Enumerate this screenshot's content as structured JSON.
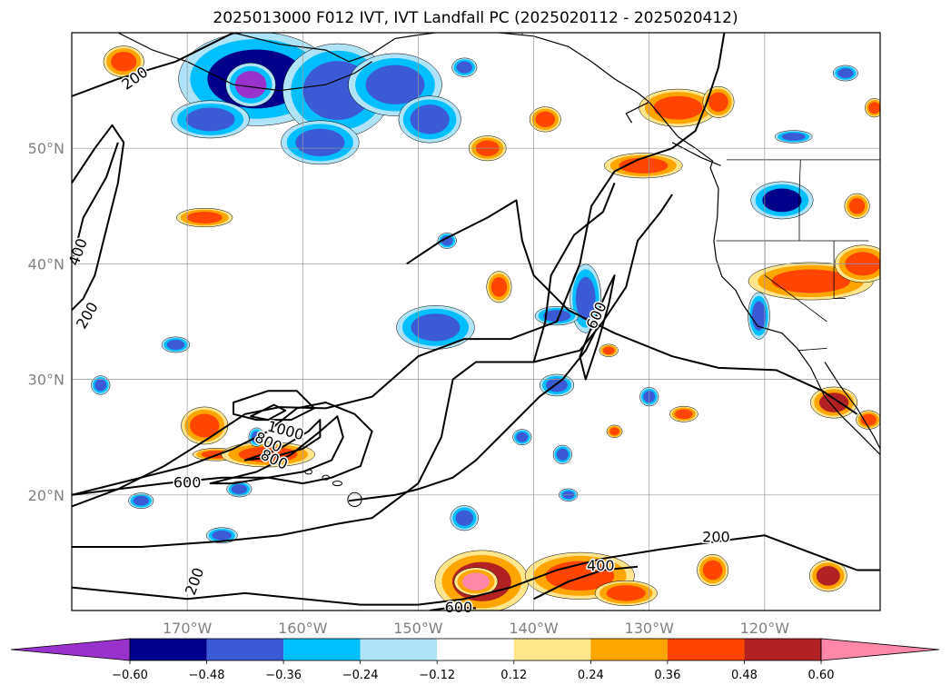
{
  "chart_data": {
    "type": "contour",
    "title": "2025013000 F012 IVT, IVT Landfall PC (2025020112 - 2025020412)",
    "lon_ticks": [
      -170,
      -160,
      -150,
      -140,
      -130,
      -120
    ],
    "lon_labels": [
      "170°W",
      "160°W",
      "150°W",
      "140°W",
      "130°W",
      "120°W"
    ],
    "lat_ticks": [
      20,
      30,
      40,
      50
    ],
    "lat_labels": [
      "20°N",
      "30°N",
      "40°N",
      "50°N"
    ],
    "xlim": [
      -180,
      -110
    ],
    "ylim": [
      10,
      60
    ],
    "grid": true,
    "ivt_contour_levels": [
      200,
      400,
      600,
      800,
      1000
    ],
    "ivt_contour_labels": [
      {
        "text": "200",
        "lon": -174.5,
        "lat": 56.0,
        "rot": -35
      },
      {
        "text": "400",
        "lon": -179.4,
        "lat": 41.0,
        "rot": -70
      },
      {
        "text": "200",
        "lon": -178.6,
        "lat": 35.5,
        "rot": -60
      },
      {
        "text": "600",
        "lon": -170.0,
        "lat": 21.0,
        "rot": 0
      },
      {
        "text": "800",
        "lon": -163.0,
        "lat": 24.5,
        "rot": 25
      },
      {
        "text": "1000",
        "lon": -161.5,
        "lat": 25.5,
        "rot": 15
      },
      {
        "text": "800",
        "lon": -162.5,
        "lat": 23.0,
        "rot": 25
      },
      {
        "text": "600",
        "lon": -134.5,
        "lat": 35.5,
        "rot": -65
      },
      {
        "text": "200",
        "lon": -124.2,
        "lat": 16.3,
        "rot": 0
      },
      {
        "text": "400",
        "lon": -134.2,
        "lat": 13.8,
        "rot": 0
      },
      {
        "text": "600",
        "lon": -146.5,
        "lat": 10.2,
        "rot": 0
      },
      {
        "text": "200",
        "lon": -169.3,
        "lat": 12.5,
        "rot": -70
      }
    ],
    "colorbar": {
      "ticks": [
        "−0.60",
        "−0.48",
        "−0.36",
        "−0.24",
        "−0.12",
        "0.12",
        "0.24",
        "0.36",
        "0.48",
        "0.60"
      ],
      "bounds": [
        -0.6,
        -0.48,
        -0.36,
        -0.24,
        -0.12,
        0.12,
        0.24,
        0.36,
        0.48,
        0.6
      ],
      "colors": [
        "#9932cc",
        "#00008b",
        "#3b5bd6",
        "#00bfff",
        "#aee3f8",
        "#ffffff",
        "#ffe68c",
        "#ffa500",
        "#ff4500",
        "#b22222",
        "#ff88aa"
      ],
      "extend": "both"
    },
    "shaded_regions": [
      {
        "lon": -164.0,
        "lat": 56.0,
        "rx": 5.0,
        "ry": 3.0,
        "cls": -0.55
      },
      {
        "lon": -164.5,
        "lat": 55.5,
        "rx": 1.6,
        "ry": 1.4,
        "cls": -0.65
      },
      {
        "lon": -157.0,
        "lat": 55.0,
        "rx": 3.5,
        "ry": 3.0,
        "cls": -0.4
      },
      {
        "lon": -152.0,
        "lat": 55.5,
        "rx": 3.0,
        "ry": 2.0,
        "cls": -0.4
      },
      {
        "lon": -149.0,
        "lat": 52.5,
        "rx": 2.0,
        "ry": 1.5,
        "cls": -0.4
      },
      {
        "lon": -168.0,
        "lat": 52.5,
        "rx": 2.5,
        "ry": 1.2,
        "cls": -0.4
      },
      {
        "lon": -158.5,
        "lat": 50.5,
        "rx": 2.5,
        "ry": 1.4,
        "cls": -0.4
      },
      {
        "lon": -175.5,
        "lat": 57.5,
        "rx": 1.3,
        "ry": 1.0,
        "cls": 0.4
      },
      {
        "lon": -168.5,
        "lat": 44.0,
        "rx": 1.8,
        "ry": 0.6,
        "cls": 0.4
      },
      {
        "lon": -144.0,
        "lat": 50.0,
        "rx": 1.2,
        "ry": 0.8,
        "cls": 0.4
      },
      {
        "lon": -127.5,
        "lat": 53.5,
        "rx": 2.5,
        "ry": 1.2,
        "cls": 0.4
      },
      {
        "lon": -124.0,
        "lat": 54.0,
        "rx": 1.0,
        "ry": 1.0,
        "cls": 0.4
      },
      {
        "lon": -130.5,
        "lat": 48.5,
        "rx": 2.5,
        "ry": 0.8,
        "cls": 0.4
      },
      {
        "lon": -143.0,
        "lat": 38.0,
        "rx": 0.8,
        "ry": 1.0,
        "cls": 0.4
      },
      {
        "lon": -116.0,
        "lat": 38.5,
        "rx": 4.0,
        "ry": 1.2,
        "cls": 0.4
      },
      {
        "lon": -111.5,
        "lat": 40.0,
        "rx": 1.8,
        "ry": 1.2,
        "cls": 0.4
      },
      {
        "lon": -118.5,
        "lat": 45.5,
        "rx": 2.0,
        "ry": 1.2,
        "cls": -0.5
      },
      {
        "lon": -120.5,
        "lat": 35.5,
        "rx": 0.7,
        "ry": 1.5,
        "cls": -0.4
      },
      {
        "lon": -135.5,
        "lat": 37.0,
        "rx": 1.0,
        "ry": 2.2,
        "cls": -0.45
      },
      {
        "lon": -148.5,
        "lat": 34.5,
        "rx": 2.5,
        "ry": 1.4,
        "cls": -0.4
      },
      {
        "lon": -138.0,
        "lat": 35.5,
        "rx": 1.4,
        "ry": 0.6,
        "cls": -0.4
      },
      {
        "lon": -147.5,
        "lat": 42.0,
        "rx": 0.6,
        "ry": 0.5,
        "cls": -0.4
      },
      {
        "lon": -168.5,
        "lat": 26.0,
        "rx": 1.5,
        "ry": 1.2,
        "cls": 0.4
      },
      {
        "lon": -167.5,
        "lat": 23.5,
        "rx": 1.5,
        "ry": 0.4,
        "cls": 0.4
      },
      {
        "lon": -163.0,
        "lat": 23.5,
        "rx": 3.0,
        "ry": 0.8,
        "cls": 0.4
      },
      {
        "lon": -144.5,
        "lat": 12.5,
        "rx": 3.0,
        "ry": 2.0,
        "cls": 0.5
      },
      {
        "lon": -145.0,
        "lat": 12.5,
        "rx": 1.4,
        "ry": 0.9,
        "cls": 0.65
      },
      {
        "lon": -136.0,
        "lat": 13.0,
        "rx": 3.5,
        "ry": 1.5,
        "cls": 0.4
      },
      {
        "lon": -132.0,
        "lat": 11.5,
        "rx": 2.0,
        "ry": 0.8,
        "cls": 0.4
      },
      {
        "lon": -124.5,
        "lat": 13.5,
        "rx": 1.0,
        "ry": 1.0,
        "cls": 0.4
      },
      {
        "lon": -114.5,
        "lat": 13.0,
        "rx": 1.2,
        "ry": 1.0,
        "cls": 0.5
      },
      {
        "lon": -114.0,
        "lat": 28.0,
        "rx": 1.5,
        "ry": 1.0,
        "cls": 0.5
      },
      {
        "lon": -111.0,
        "lat": 26.5,
        "rx": 0.8,
        "ry": 0.6,
        "cls": 0.4
      },
      {
        "lon": -133.0,
        "lat": 25.5,
        "rx": 0.5,
        "ry": 0.4,
        "cls": 0.4
      },
      {
        "lon": -127.0,
        "lat": 27.0,
        "rx": 0.9,
        "ry": 0.5,
        "cls": 0.4
      },
      {
        "lon": -138.0,
        "lat": 29.5,
        "rx": 1.1,
        "ry": 0.7,
        "cls": -0.4
      },
      {
        "lon": -141.0,
        "lat": 25.0,
        "rx": 0.6,
        "ry": 0.5,
        "cls": -0.4
      },
      {
        "lon": -137.5,
        "lat": 23.5,
        "rx": 0.6,
        "ry": 0.6,
        "cls": -0.4
      },
      {
        "lon": -146.0,
        "lat": 18.0,
        "rx": 0.9,
        "ry": 0.8,
        "cls": -0.45
      },
      {
        "lon": -137.0,
        "lat": 20.0,
        "rx": 0.6,
        "ry": 0.4,
        "cls": -0.4
      },
      {
        "lon": -130.0,
        "lat": 28.5,
        "rx": 0.6,
        "ry": 0.6,
        "cls": -0.4
      },
      {
        "lon": -133.5,
        "lat": 32.5,
        "rx": 0.6,
        "ry": 0.4,
        "cls": 0.4
      },
      {
        "lon": -177.5,
        "lat": 29.5,
        "rx": 0.6,
        "ry": 0.6,
        "cls": -0.4
      },
      {
        "lon": -174.0,
        "lat": 19.5,
        "rx": 0.8,
        "ry": 0.5,
        "cls": -0.4
      },
      {
        "lon": -165.5,
        "lat": 20.5,
        "rx": 0.8,
        "ry": 0.5,
        "cls": -0.4
      },
      {
        "lon": -167.0,
        "lat": 16.5,
        "rx": 1.0,
        "ry": 0.5,
        "cls": -0.4
      },
      {
        "lon": -171.0,
        "lat": 33.0,
        "rx": 0.9,
        "ry": 0.5,
        "cls": -0.4
      },
      {
        "lon": -164.0,
        "lat": 25.0,
        "rx": 0.5,
        "ry": 0.6,
        "cls": -0.4
      },
      {
        "lon": -146.0,
        "lat": 57.0,
        "rx": 0.8,
        "ry": 0.6,
        "cls": -0.4
      },
      {
        "lon": -117.5,
        "lat": 51.0,
        "rx": 1.2,
        "ry": 0.4,
        "cls": -0.4
      },
      {
        "lon": -112.0,
        "lat": 45.0,
        "rx": 0.8,
        "ry": 0.8,
        "cls": 0.4
      },
      {
        "lon": -110.5,
        "lat": 53.5,
        "rx": 0.6,
        "ry": 0.6,
        "cls": 0.4
      },
      {
        "lon": -113.0,
        "lat": 56.5,
        "rx": 0.8,
        "ry": 0.5,
        "cls": -0.4
      },
      {
        "lon": -139.0,
        "lat": 52.5,
        "rx": 1.0,
        "ry": 0.8,
        "cls": 0.4
      }
    ]
  }
}
